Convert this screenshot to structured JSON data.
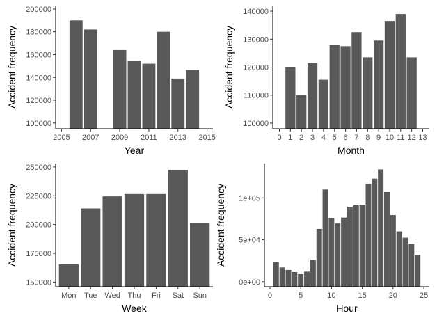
{
  "bar_color": "#595959",
  "chart_data": [
    {
      "type": "bar",
      "xlabel": "Year",
      "ylabel": "Accident frequency",
      "x": [
        2005,
        2006,
        2007,
        2008,
        2009,
        2010,
        2011,
        2012,
        2013,
        2014
      ],
      "values": [
        null,
        190000,
        182000,
        null,
        164000,
        154500,
        152000,
        180000,
        139000,
        146500
      ],
      "xlim": [
        2004.6,
        2015.4
      ],
      "ylim": [
        95000,
        203000
      ],
      "xticks": [
        2005,
        2007,
        2009,
        2011,
        2013,
        2015
      ],
      "xtick_labels": [
        "2005",
        "2007",
        "2009",
        "2011",
        "2013",
        "2015"
      ],
      "yticks": [
        100000,
        120000,
        140000,
        160000,
        180000,
        200000
      ],
      "ytick_labels": [
        "100000",
        "120000",
        "140000",
        "160000",
        "180000",
        "200000"
      ]
    },
    {
      "type": "bar",
      "xlabel": "Month",
      "ylabel": "Accident frequency",
      "x": [
        1,
        2,
        3,
        4,
        5,
        6,
        7,
        8,
        9,
        10,
        11,
        12
      ],
      "values": [
        120000,
        110000,
        121500,
        115500,
        128000,
        127500,
        132500,
        123500,
        129500,
        136500,
        139000,
        123500
      ],
      "xlim": [
        -0.6,
        13.6
      ],
      "ylim": [
        98000,
        142000
      ],
      "xticks": [
        0,
        1,
        2,
        3,
        4,
        5,
        6,
        7,
        8,
        9,
        10,
        11,
        12,
        13
      ],
      "xtick_labels": [
        "0",
        "1",
        "2",
        "3",
        "4",
        "5",
        "6",
        "7",
        "8",
        "9",
        "10",
        "11",
        "12",
        "13"
      ],
      "yticks": [
        100000,
        110000,
        120000,
        130000,
        140000
      ],
      "ytick_labels": [
        "100000",
        "110000",
        "120000",
        "130000",
        "140000"
      ]
    },
    {
      "type": "bar",
      "xlabel": "Week",
      "ylabel": "Accident frequency",
      "categories": [
        "Mon",
        "Tue",
        "Wed",
        "Thu",
        "Fri",
        "Sat",
        "Sun"
      ],
      "values": [
        165500,
        214000,
        224500,
        226500,
        226500,
        247500,
        201500
      ],
      "ylim": [
        146000,
        253000
      ],
      "yticks": [
        150000,
        175000,
        200000,
        225000,
        250000
      ],
      "ytick_labels": [
        "150000",
        "175000",
        "200000",
        "225000",
        "250000"
      ]
    },
    {
      "type": "bar",
      "xlabel": "Hour",
      "ylabel": "Accident frequency",
      "x": [
        1,
        2,
        3,
        4,
        5,
        6,
        7,
        8,
        9,
        10,
        11,
        12,
        13,
        14,
        15,
        16,
        17,
        18,
        19,
        20,
        21,
        22,
        23,
        24
      ],
      "values": [
        23500,
        17000,
        14000,
        11500,
        9000,
        12000,
        26000,
        63000,
        110000,
        75500,
        69500,
        76500,
        89500,
        91500,
        92000,
        117000,
        123000,
        134000,
        107000,
        79500,
        60000,
        52500,
        45500,
        32000
      ],
      "xlim": [
        -0.9,
        25.9
      ],
      "ylim": [
        -6000,
        141000
      ],
      "xticks": [
        0,
        5,
        10,
        15,
        20,
        25
      ],
      "xtick_labels": [
        "0",
        "5",
        "10",
        "15",
        "20",
        "25"
      ],
      "yticks": [
        0,
        50000,
        100000
      ],
      "ytick_labels": [
        "0e+00",
        "5e+04",
        "1e+05"
      ]
    }
  ]
}
